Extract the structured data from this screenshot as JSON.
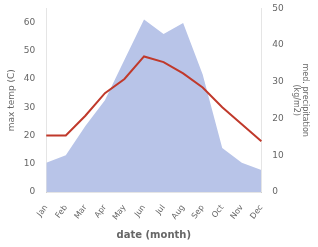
{
  "chart_data": {
    "type": "line",
    "xlabel": "date (month)",
    "ylabel": "max temp (C)",
    "y2label": "med. precipitation\n(kg/m2)",
    "categories": [
      "Jan",
      "Feb",
      "Mar",
      "Apr",
      "May",
      "Jun",
      "Jul",
      "Aug",
      "Sep",
      "Oct",
      "Nov",
      "Dec"
    ],
    "series": [
      {
        "type": "area",
        "axis": "y2",
        "color": "#b8c4e8",
        "values": [
          8,
          10,
          18,
          25,
          36,
          47,
          43,
          46,
          32,
          12,
          8,
          6
        ]
      },
      {
        "type": "line",
        "color": "#c0392b",
        "values": [
          20,
          20,
          27,
          35,
          40,
          48,
          46,
          42,
          37,
          30,
          24,
          18
        ]
      }
    ],
    "ylim": [
      0,
      65
    ],
    "yticks": [
      0,
      10,
      20,
      30,
      40,
      50,
      60
    ],
    "y2lim": [
      0,
      50
    ],
    "y2ticks": [
      0,
      10,
      20,
      30,
      40,
      50
    ],
    "grid": false
  }
}
